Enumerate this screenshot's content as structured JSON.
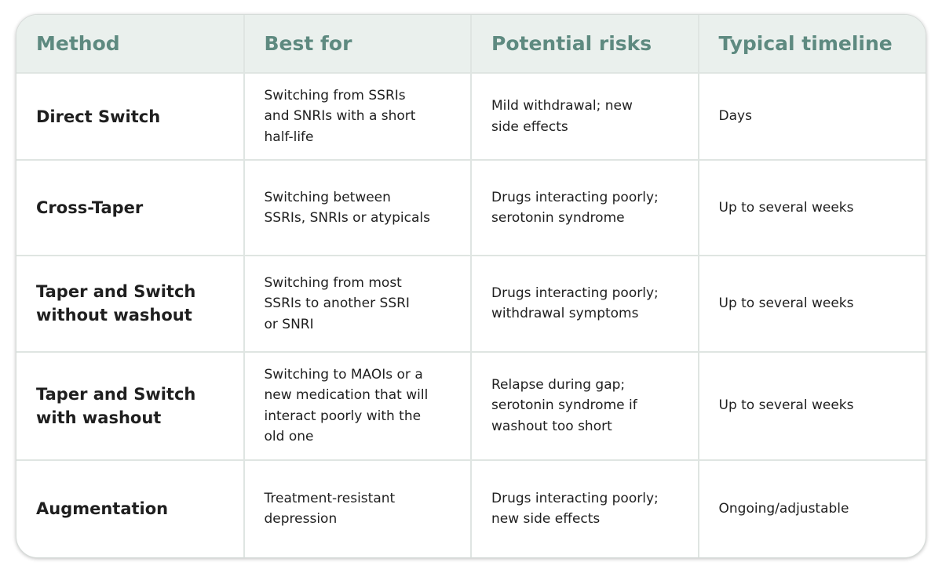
{
  "table": {
    "header": [
      "Method",
      "Best for",
      "Potential risks",
      "Typical timeline"
    ],
    "rows": [
      [
        [
          "Direct Switch"
        ],
        [
          "Switching from SSRIs",
          "and SNRIs with a short",
          "half-life"
        ],
        [
          "Mild withdrawal; new",
          "side effects"
        ],
        [
          "Days"
        ]
      ],
      [
        [
          "Cross-Taper"
        ],
        [
          "Switching between",
          "SSRIs, SNRIs or atypicals"
        ],
        [
          "Drugs interacting poorly;",
          "serotonin syndrome"
        ],
        [
          "Up to several weeks"
        ]
      ],
      [
        [
          "Taper and Switch",
          "without washout"
        ],
        [
          "Switching from most",
          "SSRIs to another SSRI",
          "or SNRI"
        ],
        [
          "Drugs interacting poorly;",
          "withdrawal symptoms"
        ],
        [
          "Up to several weeks"
        ]
      ],
      [
        [
          "Taper and Switch",
          "with washout"
        ],
        [
          "Switching to MAOIs or a",
          "new medication that will",
          "interact poorly with the",
          "old one"
        ],
        [
          "Relapse during gap;",
          "serotonin syndrome if",
          "washout too short"
        ],
        [
          "Up to several weeks"
        ]
      ],
      [
        [
          "Augmentation"
        ],
        [
          "Treatment-resistant",
          "depression"
        ],
        [
          "Drugs interacting poorly;",
          "new side effects"
        ],
        [
          "Ongoing/adjustable"
        ]
      ]
    ]
  }
}
